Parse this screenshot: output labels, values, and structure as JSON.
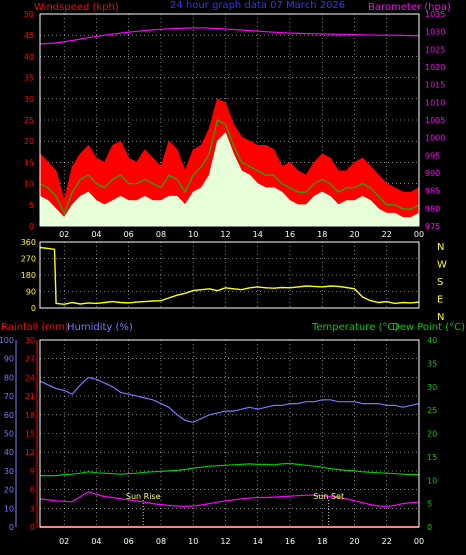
{
  "colors": {
    "background": "#000000",
    "frame": "#ffffff",
    "grid": "#ffffff",
    "wind_axis": "#ff0000",
    "baro_axis": "#ff00ff",
    "title": "#3333ff",
    "gust": "#ff0000",
    "wind_avg": "#e6ffd9",
    "wind_line": "#00c000",
    "barometer": "#ff00ff",
    "direction": "#ffff00",
    "direction_labels": "#ffff00",
    "rain": "#ff0000",
    "humidity": "#7777ff",
    "temperature": "#00cc00",
    "dewpoint": "#ff00ff",
    "temp_axis": "#00cc00",
    "sun_lines": "#ffffff",
    "sun_labels": "#ffff66"
  },
  "header": {
    "windspeed_label": "Windspeed (kph)",
    "title": "24 hour graph data  07 March 2026",
    "barometer_label": "Barometer (hpa)"
  },
  "lower_header": {
    "rainfall_label": "Rainfall (mm)",
    "humidity_label": "Humidity (%)",
    "temperature_label": "Temperature (°C)",
    "dewpoint_label": "Dew Point (°C)"
  },
  "annotations": {
    "sunrise": "Sun Rise",
    "sunset": "Sun Set"
  },
  "x_ticks": [
    "02",
    "04",
    "06",
    "08",
    "10",
    "12",
    "14",
    "16",
    "18",
    "20",
    "22",
    "00"
  ],
  "chart_data": [
    {
      "type": "line",
      "id": "wind-baro",
      "title": "24 hour graph data  07 March 2026",
      "x_unit": "hour",
      "xlim": [
        0.5,
        24
      ],
      "left_axis": {
        "label": "Windspeed (kph)",
        "ylim": [
          0,
          50
        ],
        "ticks": [
          0,
          5,
          10,
          15,
          20,
          25,
          30,
          35,
          40,
          45,
          50
        ]
      },
      "right_axis": {
        "label": "Barometer (hpa)",
        "ylim": [
          975,
          1035
        ],
        "ticks": [
          975,
          980,
          985,
          990,
          995,
          1000,
          1005,
          1010,
          1015,
          1020,
          1025,
          1030,
          1035
        ]
      },
      "grid": true,
      "series": [
        {
          "key": "gust",
          "axis": "left",
          "style": "filled",
          "x": [
            0.5,
            1,
            1.5,
            2,
            2.5,
            3,
            3.5,
            4,
            4.5,
            5,
            5.5,
            6,
            6.5,
            7,
            7.5,
            8,
            8.5,
            9,
            9.5,
            10,
            10.5,
            11,
            11.5,
            12,
            12.5,
            13,
            13.5,
            14,
            14.5,
            15,
            15.5,
            16,
            16.5,
            17,
            17.5,
            18,
            18.5,
            19,
            19.5,
            20,
            20.5,
            21,
            21.5,
            22,
            22.5,
            23,
            23.5,
            24
          ],
          "y": [
            17,
            15,
            13,
            6,
            14,
            17,
            19,
            16,
            15,
            19,
            20,
            16,
            15,
            18,
            16,
            14,
            20,
            18,
            13,
            18,
            19,
            23,
            30,
            29,
            24,
            21,
            20,
            19,
            19,
            18,
            14,
            15,
            13,
            12,
            15,
            17,
            16,
            13,
            13,
            15,
            16,
            14,
            12,
            10,
            9,
            8,
            8,
            9
          ]
        },
        {
          "key": "wind_avg",
          "axis": "left",
          "style": "filled",
          "x": [
            0.5,
            1,
            1.5,
            2,
            2.5,
            3,
            3.5,
            4,
            4.5,
            5,
            5.5,
            6,
            6.5,
            7,
            7.5,
            8,
            8.5,
            9,
            9.5,
            10,
            10.5,
            11,
            11.5,
            12,
            12.5,
            13,
            13.5,
            14,
            14.5,
            15,
            15.5,
            16,
            16.5,
            17,
            17.5,
            18,
            18.5,
            19,
            19.5,
            20,
            20.5,
            21,
            21.5,
            22,
            22.5,
            23,
            23.5,
            24
          ],
          "y": [
            7,
            6,
            4,
            2,
            5,
            7,
            8,
            6,
            5,
            6,
            7,
            6,
            6,
            7,
            6,
            6,
            7,
            7,
            5,
            8,
            9,
            12,
            20,
            22,
            17,
            13,
            12,
            10,
            9,
            9,
            8,
            6,
            5,
            5,
            7,
            8,
            7,
            5,
            6,
            6,
            7,
            6,
            4,
            3,
            3,
            2,
            2,
            3
          ]
        },
        {
          "key": "wind_line",
          "axis": "left",
          "style": "line",
          "x": [
            0.5,
            1,
            1.5,
            2,
            2.5,
            3,
            3.5,
            4,
            4.5,
            5,
            5.5,
            6,
            6.5,
            7,
            7.5,
            8,
            8.5,
            9,
            9.5,
            10,
            10.5,
            11,
            11.5,
            12,
            12.5,
            13,
            13.5,
            14,
            14.5,
            15,
            15.5,
            16,
            16.5,
            17,
            17.5,
            18,
            18.5,
            19,
            19.5,
            20,
            20.5,
            21,
            21.5,
            22,
            22.5,
            23,
            23.5,
            24
          ],
          "y": [
            10,
            9,
            7,
            3,
            8,
            11,
            12,
            10,
            9,
            11,
            12,
            10,
            10,
            11,
            10,
            9,
            12,
            11,
            8,
            12,
            14,
            17,
            25,
            24,
            19,
            15,
            14,
            13,
            12,
            12,
            10,
            9,
            8,
            8,
            10,
            11,
            10,
            8,
            9,
            9,
            10,
            9,
            7,
            5,
            5,
            4,
            4,
            5
          ]
        },
        {
          "key": "barometer",
          "axis": "right",
          "style": "line",
          "x": [
            0.5,
            1.5,
            2.5,
            3.5,
            4.5,
            5.5,
            6.5,
            7.5,
            8.5,
            9.5,
            10.5,
            11.5,
            12.5,
            13.5,
            14.5,
            15.5,
            16.5,
            17.5,
            18.5,
            19.5,
            20.5,
            21.5,
            22.5,
            23.5,
            24
          ],
          "y": [
            1026.5,
            1026.8,
            1027.5,
            1028.3,
            1029.0,
            1029.6,
            1030.1,
            1030.5,
            1030.8,
            1031.0,
            1031.1,
            1030.9,
            1030.6,
            1030.3,
            1030.0,
            1029.7,
            1029.5,
            1029.4,
            1029.3,
            1029.2,
            1029.1,
            1029.0,
            1029.0,
            1028.9,
            1028.9
          ]
        }
      ]
    },
    {
      "type": "line",
      "id": "wind-direction",
      "x_unit": "hour",
      "xlim": [
        0.5,
        24
      ],
      "left_axis": {
        "ylim": [
          0,
          360
        ],
        "ticks": [
          0,
          90,
          180,
          270,
          360
        ]
      },
      "right_axis": {
        "labels": [
          "N",
          "W",
          "S",
          "E",
          "N"
        ]
      },
      "grid": true,
      "series": [
        {
          "key": "direction",
          "x": [
            0.5,
            1,
            1.4,
            1.5,
            2,
            2.5,
            3,
            3.5,
            4,
            4.5,
            5,
            5.5,
            6,
            6.5,
            7,
            7.5,
            8,
            8.5,
            9,
            9.5,
            10,
            10.5,
            11,
            11.5,
            12,
            12.5,
            13,
            13.5,
            14,
            14.5,
            15,
            15.5,
            16,
            16.5,
            17,
            17.5,
            18,
            18.5,
            19,
            19.5,
            20,
            20.5,
            21,
            21.5,
            22,
            22.5,
            23,
            23.5,
            24
          ],
          "y": [
            330,
            325,
            320,
            25,
            20,
            30,
            22,
            28,
            25,
            30,
            35,
            30,
            28,
            32,
            35,
            38,
            40,
            55,
            70,
            80,
            95,
            100,
            105,
            95,
            110,
            105,
            100,
            110,
            115,
            110,
            108,
            112,
            110,
            115,
            120,
            118,
            115,
            120,
            118,
            112,
            105,
            60,
            40,
            30,
            35,
            25,
            30,
            28,
            32
          ]
        }
      ]
    },
    {
      "type": "line",
      "id": "temp-hum-rain",
      "x_unit": "hour",
      "xlim": [
        0.5,
        24
      ],
      "left_axis_humidity": {
        "label": "Humidity (%)",
        "ylim": [
          0,
          100
        ],
        "ticks": [
          0,
          10,
          20,
          30,
          40,
          50,
          60,
          70,
          80,
          90,
          100
        ]
      },
      "left_axis_rain": {
        "label": "Rainfall (mm)",
        "ylim": [
          0,
          30
        ],
        "ticks": [
          0,
          3,
          6,
          9,
          12,
          15,
          18,
          21,
          24,
          27,
          30
        ]
      },
      "right_axis": {
        "label": "Temperature (°C)Dew Point (°C)",
        "ylim": [
          0,
          40
        ],
        "ticks": [
          0,
          5,
          10,
          15,
          20,
          25,
          30,
          35,
          40
        ]
      },
      "grid": true,
      "series": [
        {
          "key": "humidity",
          "axis": "humidity",
          "x": [
            0.5,
            1,
            1.5,
            2,
            2.5,
            3,
            3.5,
            4,
            4.5,
            5,
            5.5,
            6,
            6.5,
            7,
            7.5,
            8,
            8.5,
            9,
            9.5,
            10,
            10.5,
            11,
            11.5,
            12,
            12.5,
            13,
            13.5,
            14,
            14.5,
            15,
            15.5,
            16,
            16.5,
            17,
            17.5,
            18,
            18.5,
            19,
            19.5,
            20,
            20.5,
            21,
            21.5,
            22,
            22.5,
            23,
            23.5,
            24
          ],
          "y": [
            78,
            76,
            74,
            73,
            71,
            76,
            80,
            79,
            77,
            75,
            72,
            71,
            70,
            69,
            68,
            66,
            64,
            60,
            57,
            56,
            58,
            60,
            61,
            62,
            62,
            63,
            64,
            63,
            64,
            65,
            65,
            66,
            66,
            67,
            67,
            68,
            68,
            67,
            67,
            67,
            66,
            66,
            66,
            65,
            65,
            64,
            65,
            66
          ]
        },
        {
          "key": "temperature",
          "axis": "temp",
          "x": [
            0.5,
            1,
            1.5,
            2,
            2.5,
            3,
            3.5,
            4,
            4.5,
            5,
            5.5,
            6,
            6.5,
            7,
            7.5,
            8,
            8.5,
            9,
            9.5,
            10,
            10.5,
            11,
            11.5,
            12,
            12.5,
            13,
            13.5,
            14,
            14.5,
            15,
            15.5,
            16,
            16.5,
            17,
            17.5,
            18,
            18.5,
            19,
            19.5,
            20,
            20.5,
            21,
            21.5,
            22,
            22.5,
            23,
            23.5,
            24
          ],
          "y": [
            11,
            11,
            11,
            11.2,
            11.3,
            11.5,
            11.8,
            11.6,
            11.5,
            11.4,
            11.3,
            11.4,
            11.5,
            11.7,
            11.8,
            11.9,
            12,
            12.1,
            12.3,
            12.6,
            12.8,
            13,
            13.1,
            13.2,
            13.3,
            13.4,
            13.5,
            13.4,
            13.4,
            13.3,
            13.5,
            13.6,
            13.4,
            13.2,
            13,
            12.8,
            12.5,
            12.3,
            12.1,
            12,
            11.8,
            11.7,
            11.6,
            11.5,
            11.4,
            11.3,
            11.2,
            11.2
          ]
        },
        {
          "key": "dewpoint",
          "axis": "temp",
          "x": [
            0.5,
            1,
            1.5,
            2,
            2.5,
            3,
            3.5,
            4,
            4.5,
            5,
            5.5,
            6,
            6.5,
            7,
            7.5,
            8,
            8.5,
            9,
            9.5,
            10,
            10.5,
            11,
            11.5,
            12,
            12.5,
            13,
            13.5,
            14,
            14.5,
            15,
            15.5,
            16,
            16.5,
            17,
            17.5,
            18,
            18.5,
            19,
            19.5,
            20,
            20.5,
            21,
            21.5,
            22,
            22.5,
            23,
            23.5,
            24
          ],
          "y": [
            6,
            5.8,
            5.6,
            5.5,
            5.4,
            6.5,
            7.5,
            7,
            6.5,
            6.3,
            6,
            5.8,
            5.6,
            5.3,
            5,
            4.8,
            4.6,
            4.5,
            4.4,
            4.5,
            4.7,
            5,
            5.3,
            5.6,
            5.8,
            6,
            6.2,
            6.3,
            6.3,
            6.4,
            6.5,
            6.6,
            6.7,
            6.8,
            6.8,
            6.7,
            6.5,
            6.3,
            6,
            5.6,
            5.2,
            4.8,
            4.5,
            4.4,
            4.6,
            5,
            5.2,
            5.3
          ]
        },
        {
          "key": "rain",
          "axis": "rain",
          "x": [
            0.5,
            24
          ],
          "y": [
            0,
            0
          ]
        }
      ],
      "annotations": [
        {
          "text": "Sun Rise",
          "x": 6.9
        },
        {
          "text": "Sun Set",
          "x": 18.4
        }
      ]
    }
  ]
}
